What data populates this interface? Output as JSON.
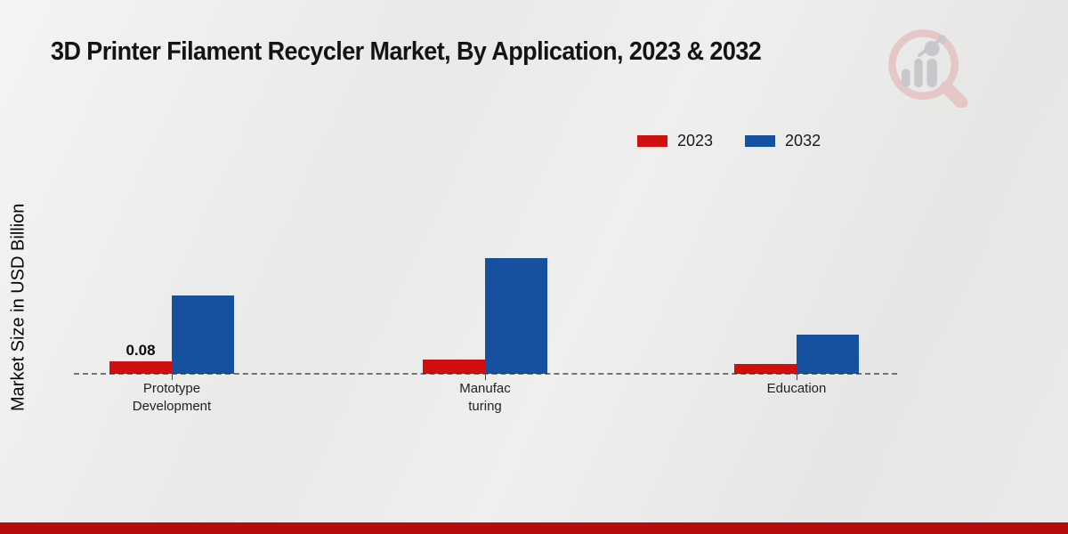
{
  "title": "3D Printer Filament Recycler Market, By Application, 2023 & 2032",
  "ylabel": "Market Size in USD Billion",
  "footer_bar_color": "#b50d0d",
  "watermark_icon": "magnifier-bar-chart-logo",
  "chart_data": {
    "type": "bar",
    "title": "3D Printer Filament Recycler Market, By Application, 2023 & 2032",
    "xlabel": "",
    "ylabel": "Market Size in USD Billion",
    "categories": [
      "Prototype Development",
      "Manufacturing",
      "Education"
    ],
    "categories_display": [
      [
        "Prototype",
        "Development"
      ],
      [
        "Manufac",
        "turing"
      ],
      [
        "Education"
      ]
    ],
    "series": [
      {
        "name": "2023",
        "color": "#d00f0f",
        "values": [
          0.08,
          0.09,
          0.06
        ]
      },
      {
        "name": "2032",
        "color": "#15519f",
        "values": [
          0.5,
          0.74,
          0.25
        ]
      }
    ],
    "data_labels": [
      {
        "series_index": 0,
        "category_index": 0,
        "text": "0.08"
      }
    ],
    "ylim": [
      0,
      0.8
    ],
    "grid": false,
    "y_axis_ticks_visible": false,
    "baseline_style": "dashed",
    "legend_position": "top-right"
  }
}
